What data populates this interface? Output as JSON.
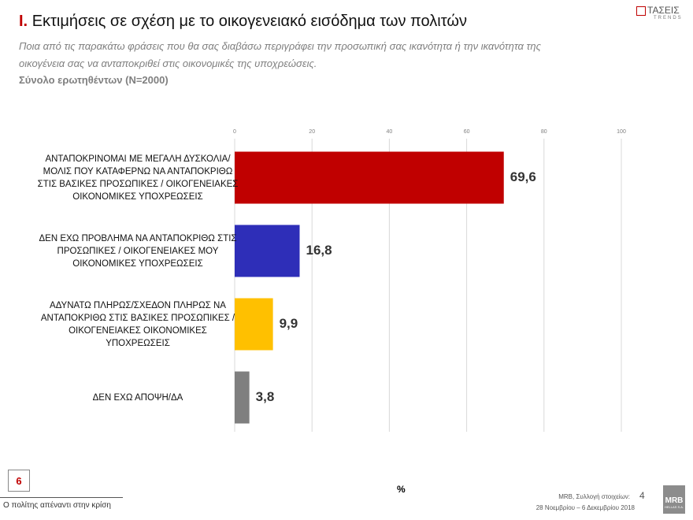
{
  "chart_data": {
    "type": "barh",
    "title_number": "Ι.",
    "title": "Εκτιμήσεις σε σχέση με το οικογενειακό εισόδημα των πολιτών",
    "subtitle": "Ποια από τις παρακάτω φράσεις που θα σας διαβάσω περιγράφει την προσωπική σας ικανότητα ή την ικανότητα της οικογένεια σας να ανταποκριθεί στις οικονομικές της  υποχρεώσεις.",
    "note": "Σύνολο ερωτηθέντων (N=2000)",
    "categories": [
      "ΑΝΤΑΠΟΚΡΙΝΟΜΑΙ ΜΕ ΜΕΓΑΛΗ ΔΥΣΚΟΛΙΑ/ΜΟΛΙΣ ΠΟΥ ΚΑΤΑΦΕΡΝΩ ΝΑ ΑΝΤΑΠΟΚΡΙΘΩ ΣΤΙΣ ΒΑΣΙΚΕΣ ΠΡΟΣΩΠΙΚΕΣ / ΟΙΚΟΓΕΝΕΙΑΚΕΣ ΟΙΚΟΝΟΜΙΚΕΣ ΥΠΟΧΡΕΩΣΕΙΣ",
      "ΔΕΝ ΕΧΩ ΠΡΟΒΛΗΜΑ ΝΑ ΑΝΤΑΠΟΚΡΙΘΩ ΣΤΙΣ ΠΡΟΣΩΠΙΚΕΣ / ΟΙΚΟΓΕΝΕΙΑΚΕΣ ΜΟΥ ΟΙΚΟΝΟΜΙΚΕΣ ΥΠΟΧΡΕΩΣΕΙΣ",
      "ΑΔΥΝΑΤΩ ΠΛΗΡΩΣ/ΣΧΕΔΟΝ ΠΛΗΡΩΣ ΝΑ ΑΝΤΑΠΟΚΡΙΘΩ ΣΤΙΣ ΒΑΣΙΚΕΣ ΠΡΟΣΩΠΙΚΕΣ / ΟΙΚΟΓΕΝΕΙΑΚΕΣ ΟΙΚΟΝΟΜΙΚΕΣ ΥΠΟΧΡΕΩΣΕΙΣ",
      "ΔΕΝ ΕΧΩ ΑΠΟΨΗ/ΔΑ"
    ],
    "values": [
      69.6,
      16.8,
      9.9,
      3.8
    ],
    "value_labels": [
      "69,6",
      "16,8",
      "9,9",
      "3,8"
    ],
    "colors": [
      "#c00000",
      "#2e2eb8",
      "#ffc000",
      "#7f7f7f"
    ],
    "xlim": [
      0,
      100
    ],
    "xticks": [
      0,
      20,
      40,
      60,
      80,
      100
    ],
    "grid": true,
    "xlabel": "%"
  },
  "header": {
    "logo_text": "ΤΑΣΕΙΣ",
    "logo_sub": "TRENDS"
  },
  "footer": {
    "page_box": "6",
    "left_text": "Ο πολίτης απέναντι στην κρίση",
    "source": "MRB, Συλλογή στοιχείων:",
    "page_number": "4",
    "dates": "28 Νοεμβρίου – 6 Δεκεμβρίου 2018",
    "logo_text": "MRB",
    "logo_sub": "HELLAS S.A."
  }
}
